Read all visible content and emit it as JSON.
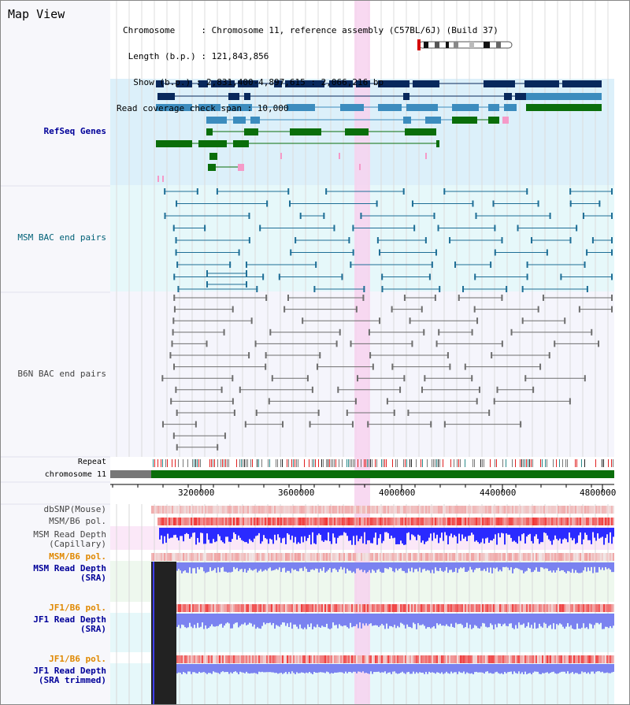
{
  "view_title": "Map View",
  "info": {
    "chromosome": "Chromosome     : Chromosome 11, reference assembly (C57BL/6J) (Build 37)",
    "length": " Length (b.p.) : 121,843,856",
    "show": "  Show (b.p.) : 2,831,400-4,897,615 : 2,066,216 bp",
    "coverage": "Read coverage check span : 10,000"
  },
  "tracks": {
    "refseq": "RefSeq Genes",
    "msm_bac": "MSM BAC end pairs",
    "b6n_bac": "B6N BAC end pairs",
    "repeat": "Repeat",
    "chromosome": "chromosome 11",
    "dbsnp": "dbSNP(Mouse)",
    "msm_pol": "MSM/B6 pol.",
    "msm_depth_cap_1": "MSM Read Depth",
    "msm_depth_cap_2": "(Capillary)",
    "msm_pol_2": "MSM/B6 pol.",
    "msm_depth_sra_1": "MSM Read Depth",
    "msm_depth_sra_2": "(SRA)",
    "jf1_pol": "JF1/B6 pol.",
    "jf1_depth_1": "JF1 Read Depth",
    "jf1_depth_2": "(SRA)",
    "jf1_pol_2": "JF1/B6 pol.",
    "jf1_trim_1": "JF1 Read Depth",
    "jf1_trim_2": "(SRA trimmed)"
  },
  "axis_ticks": [
    "3200000",
    "3600000",
    "4000000",
    "4400000",
    "4800000"
  ],
  "colors": {
    "refseq_bg": "#dcf0fa",
    "msm_bac_bg": "#e6f8fa",
    "b6n_bg": "#f5f5fc",
    "highlight": "#f7d2ef",
    "navy_gene": "#08285c",
    "steel_gene": "#3c8cbe",
    "green_gene": "#0a6e0a",
    "pink_gene": "#f59ac8",
    "bac_teal": "#1e6e96",
    "bac_gray": "#6e6e6e",
    "depth_blue": "#2a2aff",
    "depth_light_blue": "#7a82f0",
    "pol_red": "#e82a2a",
    "chrom_green": "#0a6e0a"
  }
}
